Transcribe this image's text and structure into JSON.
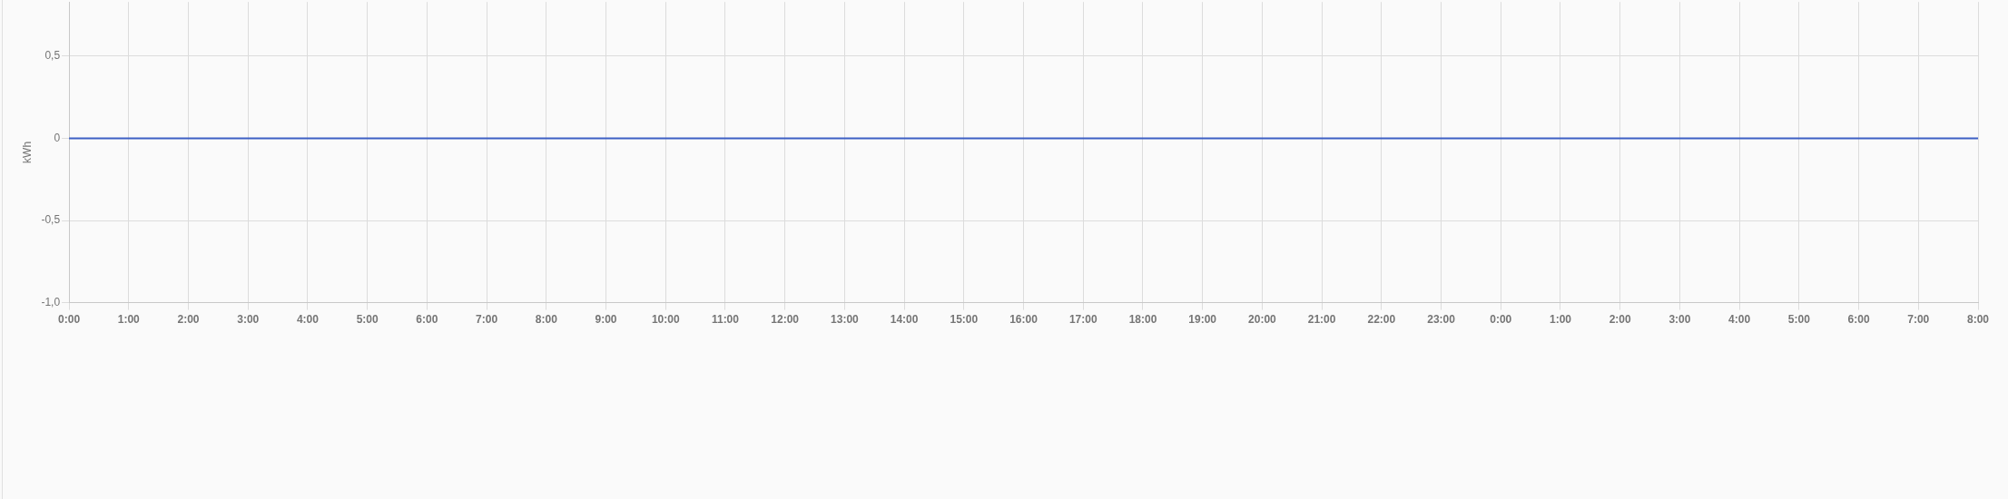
{
  "chart_data": {
    "type": "line",
    "ylabel": "kWh",
    "categories": [
      "0:00",
      "1:00",
      "2:00",
      "3:00",
      "4:00",
      "5:00",
      "6:00",
      "7:00",
      "8:00",
      "9:00",
      "10:00",
      "11:00",
      "12:00",
      "13:00",
      "14:00",
      "15:00",
      "16:00",
      "17:00",
      "18:00",
      "19:00",
      "20:00",
      "21:00",
      "22:00",
      "23:00",
      "0:00",
      "1:00",
      "2:00",
      "3:00",
      "4:00",
      "5:00",
      "6:00",
      "7:00",
      "8:00"
    ],
    "series": [
      {
        "color": "#3d5fc4",
        "values": [
          0,
          0,
          0,
          0,
          0,
          0,
          0,
          0,
          0,
          0,
          0,
          0,
          0,
          0,
          0,
          0,
          0,
          0,
          0,
          0,
          0,
          0,
          0,
          0,
          0,
          0,
          0,
          0,
          0,
          0,
          0,
          0,
          0
        ]
      }
    ],
    "ylim": [
      -1,
      0.83
    ],
    "yticks": [
      {
        "value": -1,
        "label": "-1,0"
      },
      {
        "value": -0.5,
        "label": "-0,5"
      },
      0,
      {
        "value": 0.5,
        "label": "0,5"
      }
    ],
    "grid": true,
    "marker": "none",
    "line_style": "solid"
  }
}
